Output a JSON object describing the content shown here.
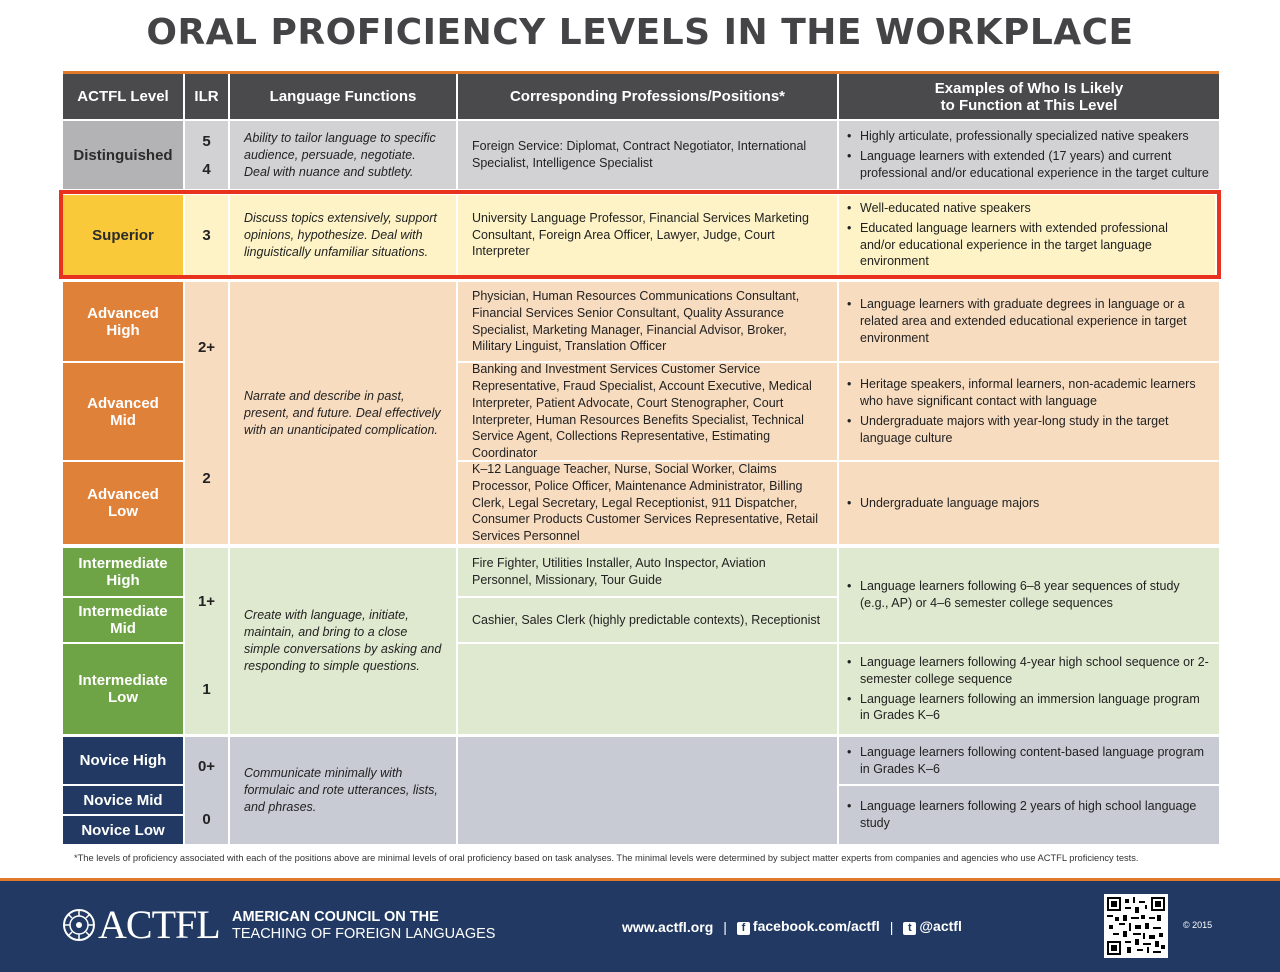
{
  "title": "ORAL PROFICIENCY LEVELS IN THE WORKPLACE",
  "headers": {
    "actfl": "ACTFL Level",
    "ilr": "ILR",
    "functions": "Language Functions",
    "professions": "Corresponding Professions/Positions*",
    "examples_line1": "Examples of Who Is Likely",
    "examples_line2": "to Function at This Level"
  },
  "distinguished": {
    "level": "Distinguished",
    "ilr": [
      "5",
      "4"
    ],
    "functions": "Ability to tailor language to specific audience, persuade, negotiate. Deal with nuance and subtlety.",
    "professions": "Foreign Service: Diplomat, Contract Negotiator, International Specialist, Intelligence Specialist",
    "examples": [
      "Highly articulate, professionally specialized native speakers",
      "Language learners with extended (17 years) and current professional and/or educational experience in the target culture"
    ]
  },
  "superior": {
    "level": "Superior",
    "ilr": "3",
    "functions": "Discuss topics extensively, support opinions, hypothesize. Deal with linguistically unfamiliar situations.",
    "professions": "University Language Professor, Financial Services Marketing Consultant, Foreign Area Officer, Lawyer, Judge, Court Interpreter",
    "examples": [
      "Well-educated native speakers",
      "Educated language learners with extended professional and/or educational experience in the target language environment"
    ]
  },
  "advanced": {
    "functions": "Narrate and describe in past, present, and future. Deal effectively with an unanticipated complication.",
    "ilr_high": "2+",
    "ilr_low": "2",
    "high": {
      "level_line1": "Advanced",
      "level_line2": "High",
      "professions": "Physician, Human Resources Communications Consultant, Financial Services Senior Consultant, Quality Assurance Specialist, Marketing Manager, Financial Advisor, Broker, Military Linguist, Translation Officer",
      "examples": [
        "Language learners with graduate degrees in language or a related area and extended educational experience in target environment"
      ]
    },
    "mid": {
      "level_line1": "Advanced",
      "level_line2": "Mid",
      "professions": "Banking and Investment Services Customer Service Representative, Fraud Specialist, Account Executive, Medical Interpreter, Patient Advocate, Court Stenographer, Court Interpreter, Human Resources Benefits Specialist, Technical Service Agent, Collections Representative, Estimating Coordinator",
      "examples": [
        "Heritage speakers, informal learners, non-academic learners who have significant contact with language",
        "Undergraduate majors with year-long study in the target language culture"
      ]
    },
    "low": {
      "level_line1": "Advanced",
      "level_line2": "Low",
      "professions": "K–12 Language Teacher, Nurse, Social Worker, Claims Processor, Police Officer, Maintenance Administrator, Billing Clerk, Legal Secretary, Legal Receptionist, 911 Dispatcher, Consumer Products Customer Services Representative, Retail Services Personnel",
      "examples": [
        "Undergraduate language majors"
      ]
    }
  },
  "intermediate": {
    "functions": "Create with language, initiate, maintain, and bring to a close simple conversations by asking and responding to simple questions.",
    "ilr_high": "1+",
    "ilr_low": "1",
    "high": {
      "level_line1": "Intermediate",
      "level_line2": "High",
      "professions": "Fire Fighter, Utilities Installer, Auto Inspector, Aviation Personnel, Missionary, Tour Guide"
    },
    "mid": {
      "level_line1": "Intermediate",
      "level_line2": "Mid",
      "professions": "Cashier, Sales Clerk (highly predictable contexts), Receptionist"
    },
    "high_mid_examples": [
      "Language learners following 6–8 year sequences of study (e.g., AP) or 4–6 semester college sequences"
    ],
    "low": {
      "level_line1": "Intermediate",
      "level_line2": "Low",
      "examples": [
        "Language learners following 4-year high school sequence or 2-semester college sequence",
        "Language learners following an immersion language program in Grades K–6"
      ]
    }
  },
  "novice": {
    "functions": "Communicate minimally with formulaic and rote utterances, lists, and phrases.",
    "ilr_high": "0+",
    "ilr_low": "0",
    "high": {
      "level": "Novice High",
      "examples": [
        "Language learners following content-based language program in Grades K–6"
      ]
    },
    "mid": {
      "level": "Novice Mid"
    },
    "low": {
      "level": "Novice Low",
      "examples": [
        "Language learners following 2 years of high school language study"
      ]
    }
  },
  "footnote": "*The levels of proficiency associated with each of the positions above are minimal levels of oral proficiency based on task analyses. The minimal levels were determined by subject matter experts from companies and agencies who use ACTFL proficiency tests.",
  "footer": {
    "brand": "ACTFL",
    "council_line1": "AMERICAN COUNCIL ON THE",
    "council_line2": "TEACHING OF FOREIGN LANGUAGES",
    "website": "www.actfl.org",
    "facebook": "facebook.com/actfl",
    "twitter": "@actfl",
    "separator": "|",
    "copyright": "© 2015"
  },
  "colors": {
    "accent_orange": "#e07a2a",
    "navy": "#223a63",
    "highlight_red": "#e8321e"
  }
}
